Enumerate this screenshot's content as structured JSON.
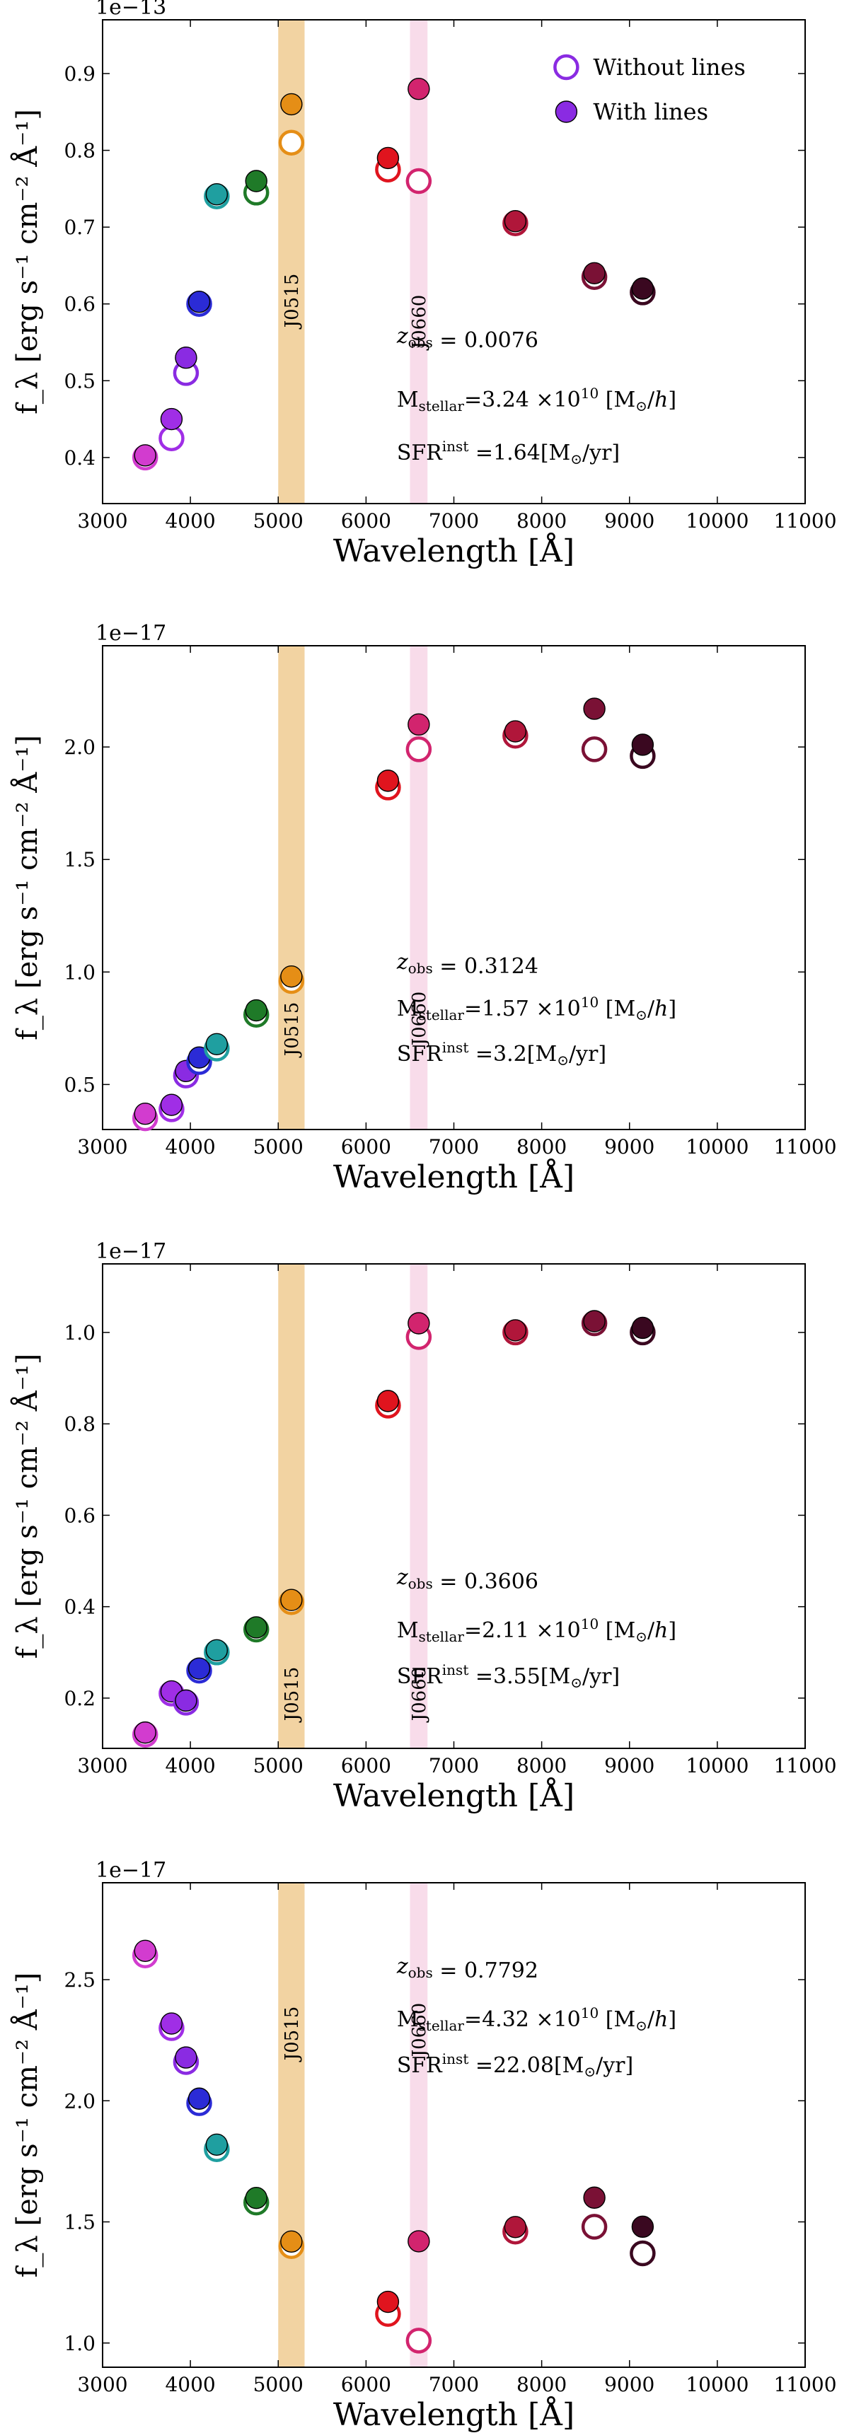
{
  "figure": {
    "xlabel": "Wavelength  [Å]",
    "ylabel": "f_λ [erg s⁻¹ cm⁻² Å⁻¹]",
    "legend": {
      "open_label": "Without lines",
      "filled_label": "With lines",
      "position": "top-right"
    },
    "bands": [
      {
        "name": "J0515",
        "range": [
          5000,
          5300
        ],
        "color": "#f2d3a2"
      },
      {
        "name": "J0660",
        "range": [
          6500,
          6700
        ],
        "color": "#f8dcea"
      }
    ],
    "filters": [
      {
        "wavelength": 3485,
        "color": "#d23ccf"
      },
      {
        "wavelength": 3785,
        "color": "#a02ee6"
      },
      {
        "wavelength": 3950,
        "color": "#8a2be2"
      },
      {
        "wavelength": 4100,
        "color": "#2b2bd6"
      },
      {
        "wavelength": 4300,
        "color": "#1f9fa0"
      },
      {
        "wavelength": 4750,
        "color": "#1f7a28"
      },
      {
        "wavelength": 5150,
        "color": "#e58e16"
      },
      {
        "wavelength": 6250,
        "color": "#e0141e"
      },
      {
        "wavelength": 6600,
        "color": "#d2246e"
      },
      {
        "wavelength": 7700,
        "color": "#b0163a"
      },
      {
        "wavelength": 8600,
        "color": "#7a1135"
      },
      {
        "wavelength": 9150,
        "color": "#3a0820"
      }
    ]
  },
  "chart_data": [
    {
      "type": "scatter",
      "panel": 1,
      "scale_label": "1e−13",
      "xlim": [
        3000,
        11000
      ],
      "ylim": [
        0.34,
        0.97
      ],
      "xticks": [
        3000,
        4000,
        5000,
        6000,
        7000,
        8000,
        9000,
        10000,
        11000
      ],
      "yticks": [
        0.4,
        0.5,
        0.6,
        0.7,
        0.8,
        0.9
      ],
      "ytick_labels": [
        "0.4",
        "0.5",
        "0.6",
        "0.7",
        "0.8",
        "0.9"
      ],
      "ylabel": "f_λ [erg s⁻¹ cm⁻² Å⁻¹]",
      "xlabel": "Wavelength  [Å]",
      "show_legend": true,
      "series": [
        {
          "name": "Without lines",
          "marker": "open",
          "values": [
            0.4,
            0.425,
            0.51,
            0.6,
            0.74,
            0.745,
            0.81,
            0.775,
            0.76,
            0.705,
            0.635,
            0.615
          ]
        },
        {
          "name": "With lines",
          "marker": "filled",
          "values": [
            0.4,
            0.45,
            0.53,
            0.6,
            0.74,
            0.76,
            0.86,
            0.79,
            0.88,
            0.705,
            0.64,
            0.62
          ]
        }
      ],
      "annotations": {
        "z": "0.0076",
        "mass": "3.24",
        "sfr": "1.64"
      }
    },
    {
      "type": "scatter",
      "panel": 2,
      "scale_label": "1e−17",
      "xlim": [
        3000,
        11000
      ],
      "ylim": [
        0.3,
        2.45
      ],
      "xticks": [
        3000,
        4000,
        5000,
        6000,
        7000,
        8000,
        9000,
        10000,
        11000
      ],
      "yticks": [
        0.5,
        1.0,
        1.5,
        2.0
      ],
      "ytick_labels": [
        "0.5",
        "1.0",
        "1.5",
        "2.0"
      ],
      "ylabel": "f_λ [erg s⁻¹ cm⁻² Å⁻¹]",
      "xlabel": "Wavelength  [Å]",
      "show_legend": false,
      "series": [
        {
          "name": "Without lines",
          "marker": "open",
          "values": [
            0.35,
            0.39,
            0.54,
            0.6,
            0.66,
            0.81,
            0.96,
            1.82,
            1.99,
            2.05,
            1.99,
            1.96
          ]
        },
        {
          "name": "With lines",
          "marker": "filled",
          "values": [
            0.37,
            0.4,
            0.56,
            0.62,
            0.67,
            0.82,
            0.98,
            1.85,
            2.1,
            2.06,
            2.17,
            2.01
          ]
        }
      ],
      "annotations": {
        "z": "0.3124",
        "mass": "1.57",
        "sfr": "3.2"
      }
    },
    {
      "type": "scatter",
      "panel": 3,
      "scale_label": "1e−17",
      "xlim": [
        3000,
        11000
      ],
      "ylim": [
        0.09,
        1.15
      ],
      "xticks": [
        3000,
        4000,
        5000,
        6000,
        7000,
        8000,
        9000,
        10000,
        11000
      ],
      "yticks": [
        0.2,
        0.4,
        0.6,
        0.8,
        1.0
      ],
      "ytick_labels": [
        "0.2",
        "0.4",
        "0.6",
        "0.8",
        "1.0"
      ],
      "ylabel": "f_λ [erg s⁻¹ cm⁻² Å⁻¹]",
      "xlabel": "Wavelength  [Å]",
      "show_legend": false,
      "series": [
        {
          "name": "Without lines",
          "marker": "open",
          "values": [
            0.12,
            0.21,
            0.19,
            0.26,
            0.3,
            0.35,
            0.41,
            0.84,
            0.99,
            1.0,
            1.02,
            1.0
          ]
        },
        {
          "name": "With lines",
          "marker": "filled",
          "values": [
            0.12,
            0.21,
            0.19,
            0.26,
            0.3,
            0.35,
            0.41,
            0.85,
            1.02,
            1.0,
            1.02,
            1.01
          ]
        }
      ],
      "annotations": {
        "z": "0.3606",
        "mass": "2.11",
        "sfr": "3.55"
      }
    },
    {
      "type": "scatter",
      "panel": 4,
      "scale_label": "1e−17",
      "xlim": [
        3000,
        11000
      ],
      "ylim": [
        0.9,
        2.9
      ],
      "xticks": [
        3000,
        4000,
        5000,
        6000,
        7000,
        8000,
        9000,
        10000,
        11000
      ],
      "yticks": [
        1.0,
        1.5,
        2.0,
        2.5
      ],
      "ytick_labels": [
        "1.0",
        "1.5",
        "2.0",
        "2.5"
      ],
      "ylabel": "f_λ [erg s⁻¹ cm⁻² Å⁻¹]",
      "xlabel": "Wavelength  [Å]",
      "show_legend": false,
      "series": [
        {
          "name": "Without lines",
          "marker": "open",
          "values": [
            2.6,
            2.3,
            2.16,
            1.99,
            1.8,
            1.58,
            1.4,
            1.12,
            1.01,
            1.46,
            1.48,
            1.37
          ]
        },
        {
          "name": "With lines",
          "marker": "filled",
          "values": [
            2.61,
            2.31,
            2.17,
            2.0,
            1.81,
            1.59,
            1.41,
            1.17,
            1.42,
            1.47,
            1.6,
            1.48
          ]
        }
      ],
      "annotations": {
        "z": "0.7792",
        "mass": "4.32",
        "sfr": "22.08"
      }
    }
  ]
}
